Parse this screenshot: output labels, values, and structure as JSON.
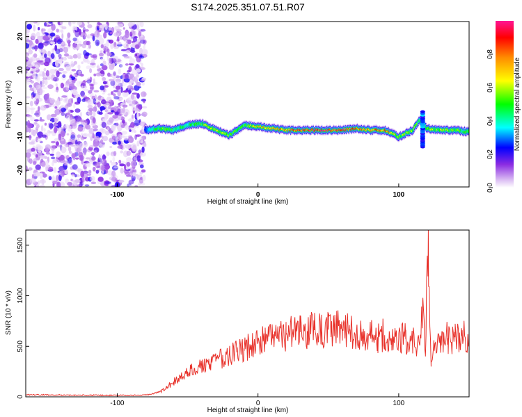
{
  "chart_data": [
    {
      "type": "heatmap",
      "title": "S174.2025.351.07.51.R07",
      "xlabel": "Height of straight line (km)",
      "ylabel": "Frequency (Hz)",
      "xlim": [
        -165,
        150
      ],
      "ylim": [
        -25,
        24.5
      ],
      "xticks": [
        -100,
        0,
        100
      ],
      "yticks": [
        -20,
        -10,
        0,
        10,
        20
      ],
      "colorbar": {
        "label": "Normalized spectral amplitude",
        "range": [
          0,
          1
        ],
        "ticks": [
          0.0,
          0.2,
          0.4,
          0.6,
          0.8
        ],
        "tick_labels": [
          "0.0",
          "0.2",
          "0.4",
          "0.6",
          "0.8"
        ],
        "colors": [
          "#ffffff",
          "#d8b8f2",
          "#8a2be2",
          "#0000ff",
          "#00ffff",
          "#00ff00",
          "#ffff00",
          "#ff8c00",
          "#ff0000",
          "#ff1493"
        ]
      },
      "noise_region_x": [
        -165,
        -80
      ],
      "signal_ridge": {
        "x": [
          -80,
          -70,
          -60,
          -50,
          -40,
          -30,
          -20,
          -10,
          0,
          10,
          20,
          30,
          40,
          50,
          60,
          70,
          80,
          90,
          100,
          110,
          115,
          120,
          130,
          140,
          150
        ],
        "frequency": [
          -8,
          -7.5,
          -8,
          -6.5,
          -6,
          -8,
          -9.5,
          -6.5,
          -7,
          -7.5,
          -8,
          -8,
          -8,
          -8,
          -8,
          -7.5,
          -8,
          -8,
          -10,
          -8,
          -5,
          -7.5,
          -8,
          -8,
          -8.5
        ],
        "amplitude": [
          0.3,
          0.55,
          0.5,
          0.45,
          0.55,
          0.65,
          0.55,
          0.55,
          0.7,
          0.75,
          0.8,
          0.9,
          0.95,
          0.95,
          0.95,
          0.85,
          0.8,
          0.85,
          0.6,
          0.6,
          0.5,
          0.6,
          0.6,
          0.55,
          0.5
        ]
      }
    },
    {
      "type": "line",
      "xlabel": "Height of straight line (km)",
      "ylabel": "SNR (10 * v/v)",
      "xlim": [
        -165,
        150
      ],
      "ylim": [
        0,
        1650
      ],
      "xticks": [
        -100,
        0,
        100
      ],
      "yticks": [
        0,
        500,
        1000,
        1500
      ],
      "series": [
        {
          "name": "SNR",
          "color": "#e8312a",
          "x": [
            -165,
            -140,
            -120,
            -100,
            -90,
            -80,
            -75,
            -70,
            -65,
            -60,
            -55,
            -50,
            -45,
            -40,
            -35,
            -30,
            -25,
            -20,
            -15,
            -10,
            -5,
            0,
            5,
            10,
            15,
            20,
            25,
            30,
            35,
            40,
            45,
            50,
            55,
            60,
            65,
            70,
            75,
            80,
            85,
            90,
            95,
            100,
            105,
            110,
            115,
            117,
            119,
            121,
            123,
            125,
            130,
            135,
            140,
            145,
            150
          ],
          "values": [
            20,
            18,
            16,
            15,
            15,
            18,
            30,
            50,
            90,
            150,
            200,
            250,
            280,
            300,
            320,
            350,
            380,
            420,
            440,
            470,
            500,
            530,
            560,
            590,
            610,
            620,
            630,
            640,
            650,
            660,
            660,
            665,
            670,
            670,
            660,
            650,
            640,
            600,
            590,
            610,
            580,
            580,
            570,
            560,
            520,
            950,
            400,
            1650,
            300,
            560,
            600,
            580,
            590,
            600,
            570
          ]
        }
      ]
    }
  ]
}
